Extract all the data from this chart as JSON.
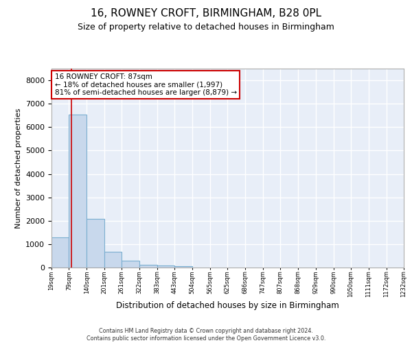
{
  "title_line1": "16, ROWNEY CROFT, BIRMINGHAM, B28 0PL",
  "title_line2": "Size of property relative to detached houses in Birmingham",
  "xlabel": "Distribution of detached houses by size in Birmingham",
  "ylabel": "Number of detached properties",
  "bin_edges": [
    19,
    79,
    140,
    201,
    261,
    322,
    383,
    443,
    504,
    565,
    625,
    686,
    747,
    807,
    868,
    929,
    990,
    1050,
    1111,
    1172,
    1232
  ],
  "bar_heights": [
    1300,
    6550,
    2080,
    660,
    280,
    130,
    80,
    60,
    0,
    0,
    0,
    0,
    0,
    0,
    0,
    0,
    0,
    0,
    0,
    0
  ],
  "bar_color": "#c8d8ec",
  "bar_edge_color": "#7aaed0",
  "property_size": 87,
  "property_line_color": "#cc0000",
  "annotation_line1": "16 ROWNEY CROFT: 87sqm",
  "annotation_line2": "← 18% of detached houses are smaller (1,997)",
  "annotation_line3": "81% of semi-detached houses are larger (8,879) →",
  "annotation_box_facecolor": "#ffffff",
  "annotation_box_edgecolor": "#cc0000",
  "ylim_max": 8500,
  "yticks": [
    0,
    1000,
    2000,
    3000,
    4000,
    5000,
    6000,
    7000,
    8000
  ],
  "plot_bg_color": "#e8eef8",
  "grid_color": "#ffffff",
  "footer_line1": "Contains HM Land Registry data © Crown copyright and database right 2024.",
  "footer_line2": "Contains public sector information licensed under the Open Government Licence v3.0."
}
